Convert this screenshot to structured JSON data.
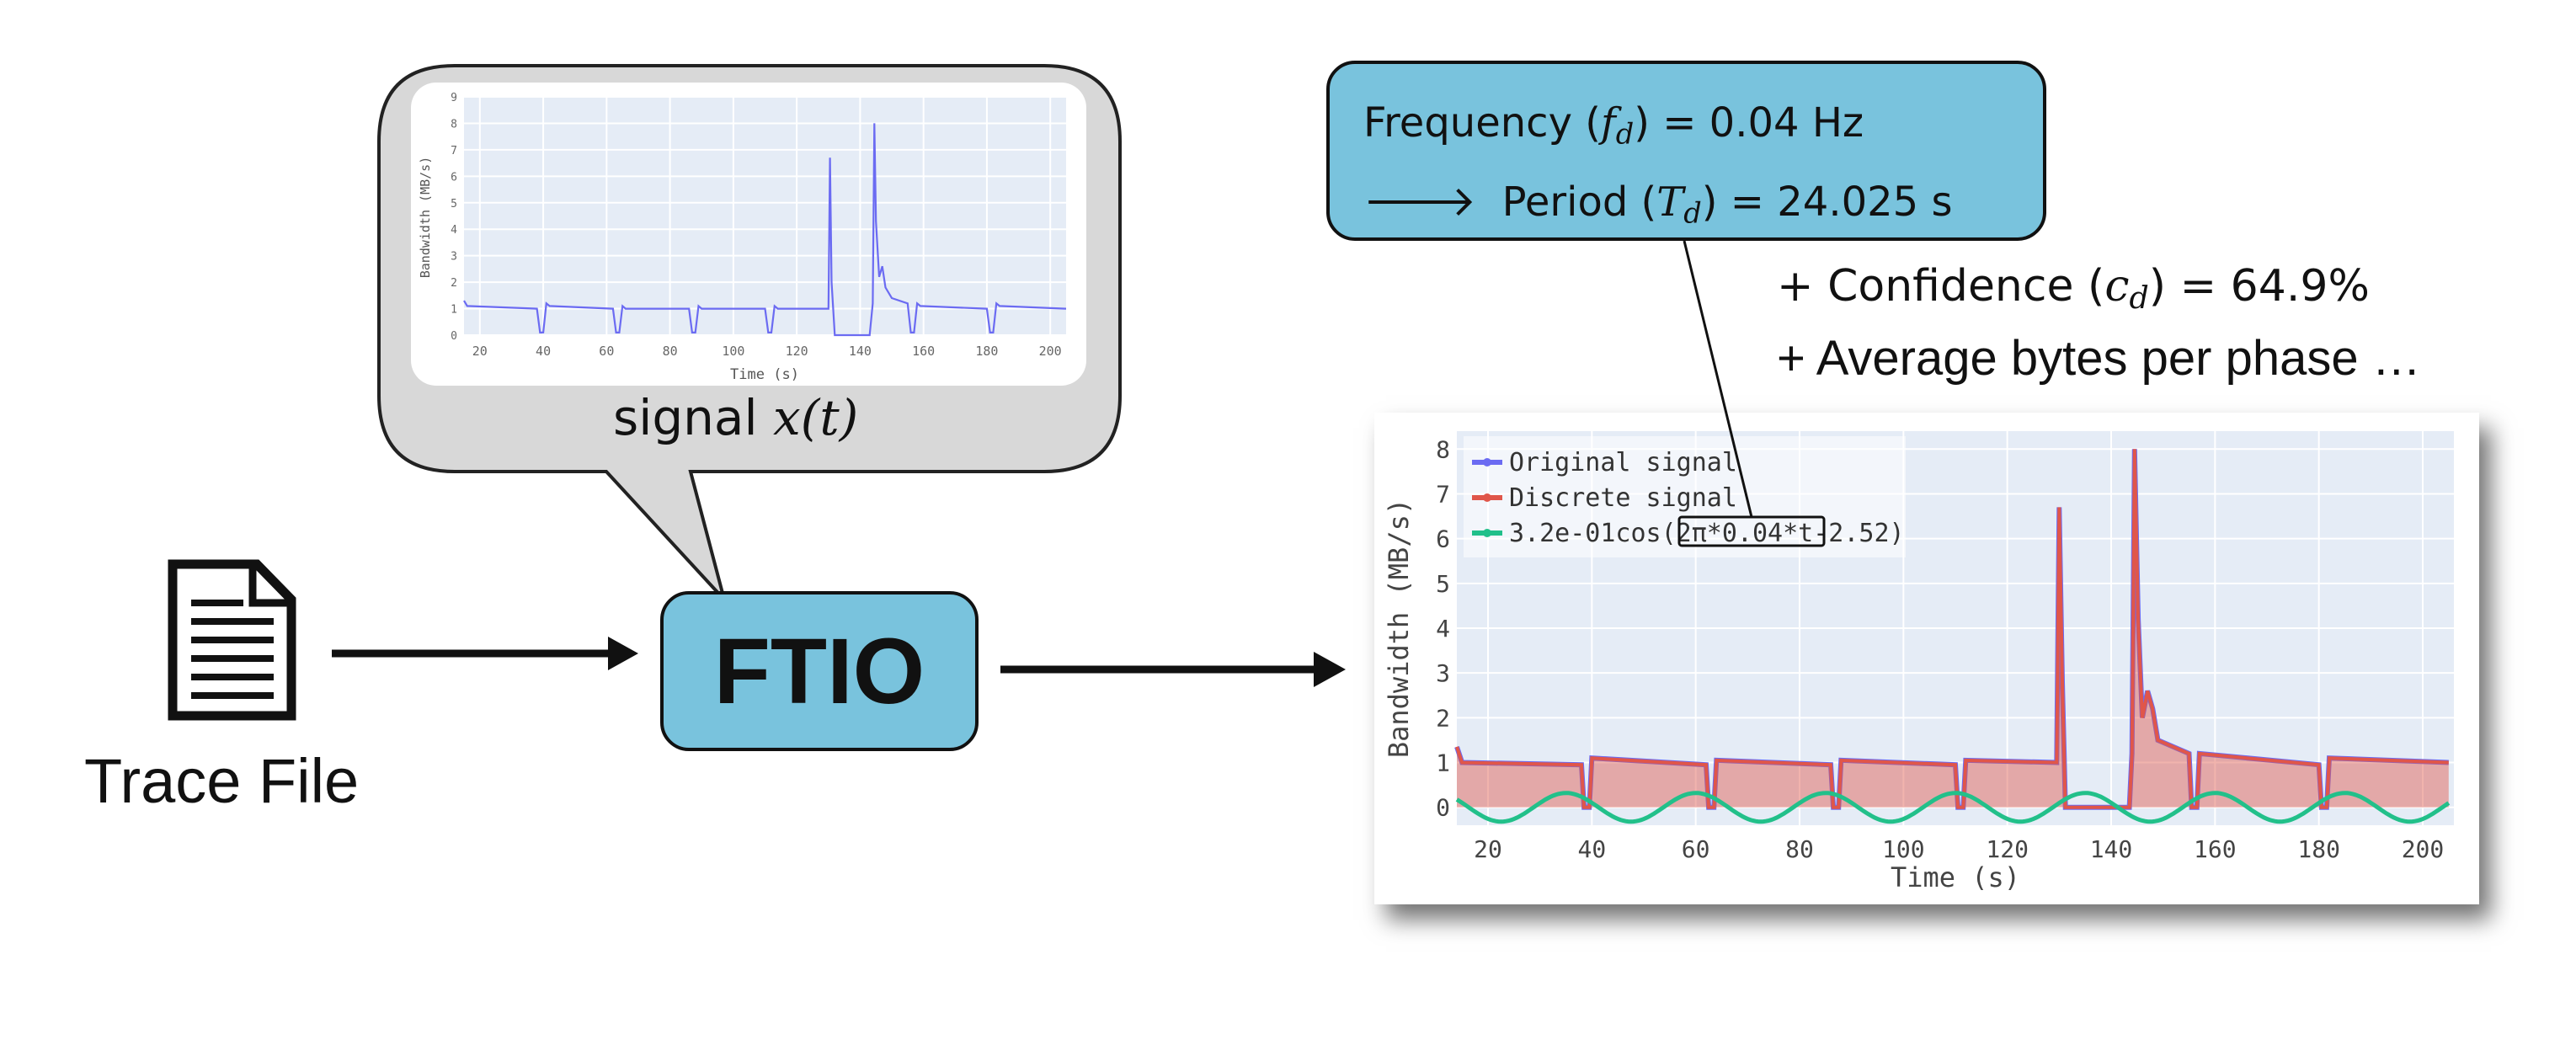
{
  "signal_label": "signal",
  "signal_math": "x(t)",
  "trace_file_label": "Trace File",
  "ftio_label": "FTIO",
  "frequency_box": {
    "freq_prefix": "Frequency",
    "freq_symbol": "f",
    "freq_subscript": "d",
    "freq_value": "= 0.04 Hz",
    "arrow": "🡒",
    "period_prefix": "Period",
    "period_symbol": "T",
    "period_subscript": "d",
    "period_value": "= 24.025 s"
  },
  "confidence": {
    "prefix": "+ Confidence",
    "symbol": "c",
    "subscript": "d",
    "value": "= 64.9%"
  },
  "average_bytes": "+ Average bytes per phase …",
  "colors": {
    "box_fill": "#79c3dd",
    "original_signal": "#6b6bf2",
    "discrete_signal": "#e0564a",
    "cosine": "#22c08a",
    "plot_bg": "#e5ecf6"
  },
  "chart_data": [
    {
      "type": "line",
      "title": "",
      "xlabel": "Time (s)",
      "ylabel": "Bandwidth (MB/s)",
      "xlim": [
        15,
        205
      ],
      "ylim": [
        0,
        9
      ],
      "x_ticks": [
        "20",
        "40",
        "60",
        "80",
        "100",
        "120",
        "140",
        "160",
        "180",
        "200"
      ],
      "y_ticks": [
        "0",
        "1",
        "2",
        "3",
        "4",
        "5",
        "6",
        "7",
        "8",
        "9"
      ],
      "series": [
        {
          "values": [
            [
              15,
              1.3
            ],
            [
              16,
              1.1
            ],
            [
              38,
              1.0
            ],
            [
              39,
              0.1
            ],
            [
              40,
              0.1
            ],
            [
              41,
              1.2
            ],
            [
              42,
              1.1
            ],
            [
              62,
              1.0
            ],
            [
              63,
              0.1
            ],
            [
              64,
              0.1
            ],
            [
              65,
              1.1
            ],
            [
              66,
              1.0
            ],
            [
              86,
              1.0
            ],
            [
              87,
              0.1
            ],
            [
              88,
              0.1
            ],
            [
              89,
              1.1
            ],
            [
              90,
              1.0
            ],
            [
              110,
              1.0
            ],
            [
              111,
              0.1
            ],
            [
              112,
              0.1
            ],
            [
              113,
              1.1
            ],
            [
              114,
              1.0
            ],
            [
              130,
              1.0
            ],
            [
              130.5,
              6.7
            ],
            [
              131,
              2.0
            ],
            [
              132,
              0.0
            ],
            [
              143,
              0.0
            ],
            [
              144,
              1.2
            ],
            [
              144.5,
              8.0
            ],
            [
              145,
              4.3
            ],
            [
              146,
              2.2
            ],
            [
              147,
              2.6
            ],
            [
              148,
              1.8
            ],
            [
              150,
              1.4
            ],
            [
              155,
              1.2
            ],
            [
              156,
              0.1
            ],
            [
              157,
              0.1
            ],
            [
              158,
              1.2
            ],
            [
              159,
              1.1
            ],
            [
              180,
              1.0
            ],
            [
              181,
              0.1
            ],
            [
              182,
              0.1
            ],
            [
              183,
              1.2
            ],
            [
              184,
              1.1
            ],
            [
              205,
              1.0
            ]
          ]
        }
      ]
    },
    {
      "type": "line",
      "title": "",
      "xlabel": "Time (s)",
      "ylabel": "Bandwidth (MB/s)",
      "xlim": [
        14,
        206
      ],
      "ylim": [
        -0.4,
        8.4
      ],
      "x_ticks": [
        "20",
        "40",
        "60",
        "80",
        "100",
        "120",
        "140",
        "160",
        "180",
        "200"
      ],
      "y_ticks": [
        "0",
        "1",
        "2",
        "3",
        "4",
        "5",
        "6",
        "7",
        "8"
      ],
      "legend_position": "top-left",
      "series": [
        {
          "name": "Original signal",
          "values": [
            [
              14,
              1.35
            ],
            [
              15,
              1.0
            ],
            [
              38,
              0.95
            ],
            [
              38.5,
              0.0
            ],
            [
              39.5,
              0.0
            ],
            [
              40,
              1.1
            ],
            [
              62,
              0.95
            ],
            [
              62.5,
              0.0
            ],
            [
              63.5,
              0.0
            ],
            [
              64,
              1.05
            ],
            [
              86,
              0.95
            ],
            [
              86.5,
              0.0
            ],
            [
              87.5,
              0.0
            ],
            [
              88,
              1.05
            ],
            [
              110,
              0.95
            ],
            [
              110.5,
              0.0
            ],
            [
              111.5,
              0.0
            ],
            [
              112,
              1.05
            ],
            [
              129.5,
              1.0
            ],
            [
              130,
              6.7
            ],
            [
              130.6,
              2.8
            ],
            [
              131.2,
              0.0
            ],
            [
              143.5,
              0.0
            ],
            [
              144,
              1.2
            ],
            [
              144.5,
              8.0
            ],
            [
              145.2,
              4.2
            ],
            [
              146,
              2.0
            ],
            [
              147,
              2.6
            ],
            [
              148,
              2.2
            ],
            [
              149,
              1.5
            ],
            [
              155,
              1.2
            ],
            [
              155.5,
              0.0
            ],
            [
              156.5,
              0.0
            ],
            [
              157,
              1.2
            ],
            [
              180,
              0.95
            ],
            [
              180.5,
              0.0
            ],
            [
              181.5,
              0.0
            ],
            [
              182,
              1.1
            ],
            [
              205,
              1.0
            ]
          ]
        },
        {
          "name": "Discrete signal",
          "values": [
            [
              14,
              1.35
            ],
            [
              15,
              1.0
            ],
            [
              38,
              0.95
            ],
            [
              38.5,
              0.0
            ],
            [
              39.5,
              0.0
            ],
            [
              40,
              1.1
            ],
            [
              62,
              0.95
            ],
            [
              62.5,
              0.0
            ],
            [
              63.5,
              0.0
            ],
            [
              64,
              1.05
            ],
            [
              86,
              0.95
            ],
            [
              86.5,
              0.0
            ],
            [
              87.5,
              0.0
            ],
            [
              88,
              1.05
            ],
            [
              110,
              0.95
            ],
            [
              110.5,
              0.0
            ],
            [
              111.5,
              0.0
            ],
            [
              112,
              1.05
            ],
            [
              129.5,
              1.0
            ],
            [
              130,
              6.7
            ],
            [
              130.6,
              2.8
            ],
            [
              131.2,
              0.0
            ],
            [
              143.5,
              0.0
            ],
            [
              144,
              1.2
            ],
            [
              144.5,
              8.0
            ],
            [
              145.2,
              4.2
            ],
            [
              146,
              2.0
            ],
            [
              147,
              2.6
            ],
            [
              148,
              2.2
            ],
            [
              149,
              1.5
            ],
            [
              155,
              1.2
            ],
            [
              155.5,
              0.0
            ],
            [
              156.5,
              0.0
            ],
            [
              157,
              1.2
            ],
            [
              180,
              0.95
            ],
            [
              180.5,
              0.0
            ],
            [
              181.5,
              0.0
            ],
            [
              182,
              1.1
            ],
            [
              205,
              1.0
            ]
          ]
        },
        {
          "name": "3.2e-01cos(2π*0.04*t-2.52)",
          "amplitude": 0.32,
          "frequency": 0.04,
          "phase": -2.52
        }
      ]
    }
  ]
}
